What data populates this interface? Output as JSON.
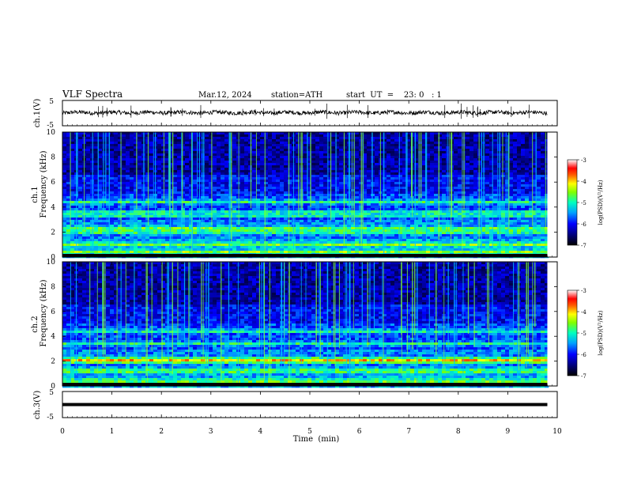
{
  "header": {
    "title": "VLF  Spectra",
    "date": "Mar.12, 2024",
    "station": "station=ATH",
    "start": "start  UT  =    23: 0   : 1"
  },
  "chart_data": [
    {
      "type": "line",
      "panel": "ch1-waveform",
      "ylabel": "ch.1(V)",
      "ylim": [
        -5,
        5
      ],
      "yticks": [
        "5",
        "-5"
      ],
      "x_range_min": [
        0,
        9.8
      ]
    },
    {
      "type": "heatmap",
      "panel": "ch1-spectrogram",
      "ylabel": "ch.1\nFrequency (kHz)",
      "ylabel_lines": [
        "ch.1",
        "Frequency (kHz)"
      ],
      "ylim": [
        0,
        10
      ],
      "yticks": [
        "0",
        "2",
        "4",
        "6",
        "8",
        "10"
      ],
      "colorbar": {
        "label": "log(PSD)(V²/Hz)",
        "range": [
          -7,
          -3
        ],
        "ticks": [
          "-3",
          "-4",
          "-5",
          "-6",
          "-7"
        ]
      },
      "bands_khz": [
        0.4,
        1.0,
        2.0,
        2.3,
        3.3,
        3.6,
        4.4
      ]
    },
    {
      "type": "heatmap",
      "panel": "ch2-spectrogram",
      "ylabel": "ch.2\nFrequency (kHz)",
      "ylabel_lines": [
        "ch.2",
        "Frequency (kHz)"
      ],
      "ylim": [
        0,
        10
      ],
      "yticks": [
        "0",
        "2",
        "4",
        "6",
        "8",
        "10"
      ],
      "colorbar": {
        "label": "log(PSD)(V²/Hz)",
        "range": [
          -7,
          -3
        ],
        "ticks": [
          "-3",
          "-4",
          "-5",
          "-6",
          "-7"
        ]
      },
      "bands_khz": [
        0.4,
        1.2,
        2.0,
        2.2,
        3.4,
        4.4
      ]
    },
    {
      "type": "line",
      "panel": "ch3-waveform",
      "ylabel": "ch.3(V)",
      "ylim": [
        -5,
        5
      ],
      "yticks": [
        "5",
        "-5"
      ],
      "constant_value": 0,
      "x_range_min": [
        0,
        9.8
      ]
    }
  ],
  "xaxis": {
    "label": "Time  (min)",
    "range": [
      0,
      10
    ],
    "ticks": [
      "0",
      "1",
      "2",
      "3",
      "4",
      "5",
      "6",
      "7",
      "8",
      "9",
      "10"
    ]
  }
}
